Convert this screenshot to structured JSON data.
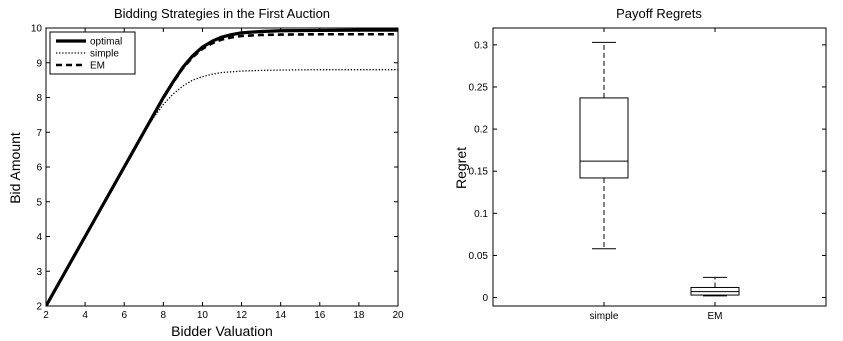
{
  "chart_data": [
    {
      "type": "line",
      "title": "Bidding Strategies in the First Auction",
      "xlabel": "Bidder Valuation",
      "ylabel": "Bid Amount",
      "xlim": [
        2,
        20
      ],
      "ylim": [
        2,
        10
      ],
      "xticks": [
        2,
        4,
        6,
        8,
        10,
        12,
        14,
        16,
        18,
        20
      ],
      "yticks": [
        2,
        3,
        4,
        5,
        6,
        7,
        8,
        9,
        10
      ],
      "grid": false,
      "legend_position": "top-left",
      "series": [
        {
          "name": "optimal",
          "style": "solid",
          "x": [
            2,
            3,
            4,
            5,
            6,
            7,
            8,
            8.5,
            9,
            9.5,
            10,
            10.5,
            11,
            11.5,
            12,
            13,
            14,
            16,
            18,
            20
          ],
          "y": [
            2,
            3,
            4,
            5,
            6,
            7,
            8,
            8.45,
            8.87,
            9.2,
            9.45,
            9.62,
            9.74,
            9.81,
            9.86,
            9.9,
            9.92,
            9.93,
            9.94,
            9.94
          ]
        },
        {
          "name": "simple",
          "style": "dotted",
          "x": [
            2,
            3,
            4,
            5,
            6,
            7,
            7.5,
            8,
            8.5,
            9,
            9.5,
            10,
            10.5,
            11,
            12,
            13,
            14,
            16,
            18,
            20
          ],
          "y": [
            2,
            3,
            4,
            5,
            6,
            6.98,
            7.42,
            7.8,
            8.1,
            8.33,
            8.5,
            8.6,
            8.67,
            8.72,
            8.76,
            8.78,
            8.79,
            8.8,
            8.8,
            8.8
          ]
        },
        {
          "name": "EM",
          "style": "dashed",
          "x": [
            2,
            3,
            4,
            5,
            6,
            7,
            8,
            8.5,
            9,
            9.5,
            10,
            10.5,
            11,
            11.5,
            12,
            13,
            14,
            16,
            18,
            20
          ],
          "y": [
            2,
            3,
            4,
            5,
            6,
            7,
            7.98,
            8.43,
            8.84,
            9.16,
            9.4,
            9.56,
            9.67,
            9.73,
            9.77,
            9.8,
            9.81,
            9.82,
            9.82,
            9.82
          ]
        }
      ]
    },
    {
      "type": "box",
      "title": "Payoff Regrets",
      "xlabel": "",
      "ylabel": "Regret",
      "categories": [
        "simple",
        "EM"
      ],
      "ylim": [
        -0.01,
        0.32
      ],
      "yticks": [
        0,
        0.05,
        0.1,
        0.15,
        0.2,
        0.25,
        0.3
      ],
      "grid": false,
      "boxes": [
        {
          "category": "simple",
          "min": 0.058,
          "q1": 0.142,
          "median": 0.162,
          "q3": 0.237,
          "max": 0.303
        },
        {
          "category": "EM",
          "min": 0.002,
          "q1": 0.003,
          "median": 0.007,
          "q3": 0.012,
          "max": 0.024
        }
      ]
    }
  ]
}
